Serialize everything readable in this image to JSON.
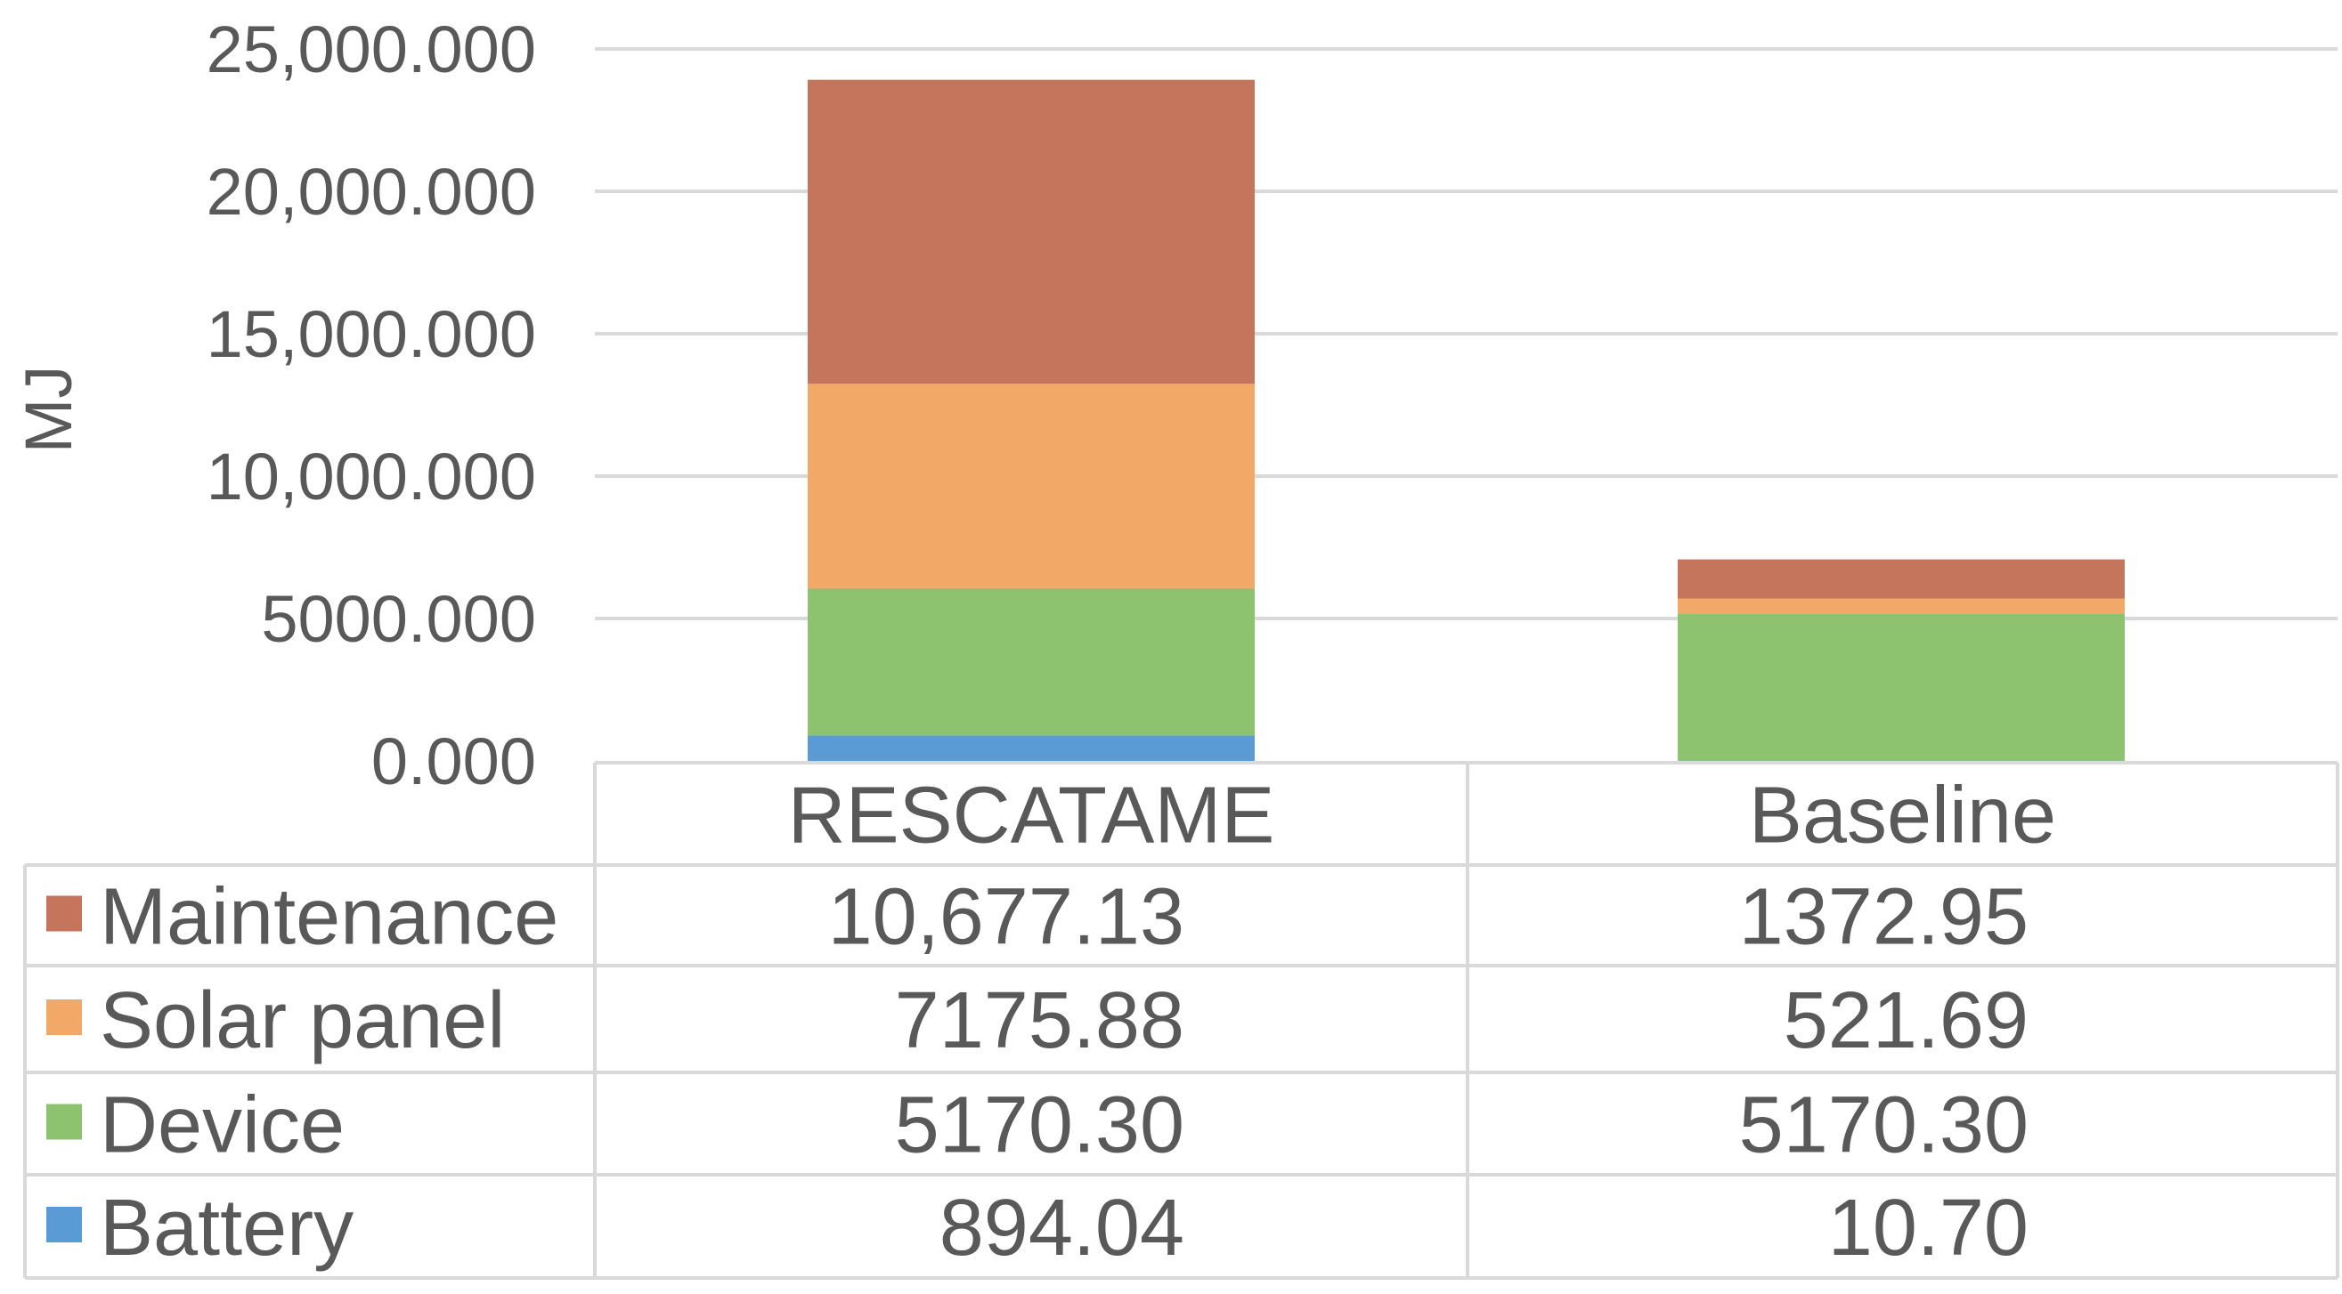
{
  "chart_data": {
    "type": "bar",
    "stacked": true,
    "categories": [
      "RESCATAME",
      "Baseline"
    ],
    "ylabel": "MJ",
    "ylim": [
      0,
      25000
    ],
    "yticks": [
      0,
      5000,
      10000,
      15000,
      20000,
      25000
    ],
    "ytick_labels": [
      "0.000",
      "5000.000",
      "10,000.000",
      "15,000.000",
      "20,000.000",
      "25,000.000"
    ],
    "grid": true,
    "legend": "data-table",
    "series": [
      {
        "name": "Battery",
        "color": "#5b9bd5",
        "values": [
          894.04,
          10.7
        ],
        "labels": [
          "894.04",
          "10.70"
        ]
      },
      {
        "name": "Device",
        "color": "#8dc26f",
        "values": [
          5170.3,
          5170.3
        ],
        "labels": [
          "5170.30",
          "5170.30"
        ]
      },
      {
        "name": "Solar panel",
        "color": "#f2a968",
        "values": [
          7175.88,
          521.69
        ],
        "labels": [
          "7175.88",
          "521.69"
        ]
      },
      {
        "name": "Maintenance",
        "color": "#c4755b",
        "values": [
          10677.13,
          1372.95
        ],
        "labels": [
          "10,677.13",
          "1372.95"
        ]
      }
    ],
    "table_row_order": [
      "Maintenance",
      "Solar panel",
      "Device",
      "Battery"
    ]
  }
}
